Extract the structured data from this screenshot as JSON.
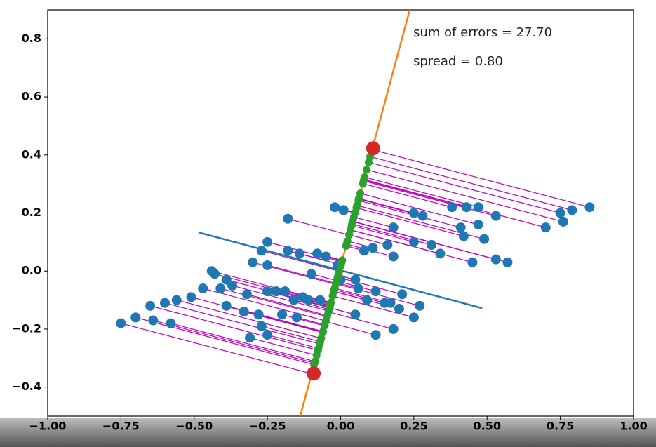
{
  "chart_data": {
    "type": "scatter",
    "annotations": [
      "sum of errors = 27.70",
      "spread = 0.80"
    ],
    "xlim": [
      -1.0,
      1.0
    ],
    "ylim": [
      -0.5,
      0.9
    ],
    "xticks": [
      {
        "value": -1.0,
        "label": "−1.00"
      },
      {
        "value": -0.75,
        "label": "−0.75"
      },
      {
        "value": -0.5,
        "label": "−0.50"
      },
      {
        "value": -0.25,
        "label": "−0.25"
      },
      {
        "value": 0,
        "label": "0.00"
      },
      {
        "value": 0.25,
        "label": "0.25"
      },
      {
        "value": 0.5,
        "label": "0.50"
      },
      {
        "value": 0.75,
        "label": "0.75"
      },
      {
        "value": 1.0,
        "label": "1.00"
      }
    ],
    "yticks": [
      {
        "value": -0.4,
        "label": "−0.4"
      },
      {
        "value": -0.2,
        "label": "−0.2"
      },
      {
        "value": 0,
        "label": "0.0"
      },
      0.2,
      0.4,
      0.6,
      0.8
    ],
    "projection_color": "#bf00bf",
    "projection_point_color": "#2ca02c",
    "series": [
      {
        "color": "#1f77b4",
        "mode": "points",
        "x": [
          0.85,
          0.79,
          0.75,
          0.76,
          0.7,
          0.47,
          0.43,
          0.38,
          0.53,
          0.47,
          0.41,
          0.42,
          0.49,
          0.25,
          0.28,
          0.18,
          0.25,
          0.31,
          0.34,
          0.45,
          0.53,
          0.57,
          0.16,
          0.11,
          0.08,
          0.18,
          -0.02,
          0.01,
          -0.18,
          -0.25,
          -0.27,
          -0.18,
          -0.14,
          -0.08,
          -0.05,
          -0.3,
          -0.25,
          -0.1,
          -0.44,
          -0.43,
          -0.39,
          -0.37,
          -0.47,
          -0.41,
          -0.32,
          -0.25,
          -0.22,
          -0.19,
          -0.16,
          -0.13,
          -0.11,
          -0.07,
          -0.51,
          -0.56,
          -0.6,
          -0.65,
          -0.39,
          -0.33,
          -0.28,
          -0.2,
          -0.15,
          -0.7,
          -0.64,
          -0.58,
          -0.75,
          -0.27,
          -0.25,
          -0.31,
          0.05,
          0.06,
          0.12,
          0.21,
          0.09,
          0.15,
          0.17,
          0.27,
          0.2,
          0.25,
          0.05,
          0.18,
          0.12,
          0.0,
          -0.01
        ],
        "y": [
          0.22,
          0.21,
          0.2,
          0.17,
          0.15,
          0.22,
          0.22,
          0.22,
          0.19,
          0.16,
          0.15,
          0.12,
          0.11,
          0.2,
          0.19,
          0.15,
          0.1,
          0.09,
          0.06,
          0.03,
          0.04,
          0.03,
          0.09,
          0.08,
          0.07,
          0.05,
          0.22,
          0.21,
          0.18,
          0.1,
          0.07,
          0.07,
          0.06,
          0.06,
          0.05,
          0.03,
          0.02,
          -0.01,
          0.0,
          -0.01,
          -0.03,
          -0.05,
          -0.06,
          -0.06,
          -0.08,
          -0.07,
          -0.07,
          -0.07,
          -0.1,
          -0.09,
          -0.1,
          -0.1,
          -0.09,
          -0.1,
          -0.11,
          -0.12,
          -0.12,
          -0.14,
          -0.15,
          -0.15,
          -0.16,
          -0.16,
          -0.17,
          -0.18,
          -0.18,
          -0.19,
          -0.22,
          -0.23,
          -0.03,
          -0.06,
          -0.07,
          -0.08,
          -0.1,
          -0.11,
          -0.11,
          -0.12,
          -0.13,
          -0.16,
          -0.15,
          -0.2,
          -0.22,
          -0.03,
          0.02
        ]
      },
      {
        "color": "#1f77b4",
        "mode": "line",
        "x": [
          -0.485,
          0.483
        ],
        "y": [
          0.133,
          -0.128
        ]
      },
      {
        "color": "#ff7f0e",
        "mode": "line",
        "projection": true,
        "x": [
          -0.138,
          0.236
        ],
        "y": [
          -0.5,
          0.9
        ]
      },
      {
        "color": "#d62728",
        "mode": "points",
        "size": 10,
        "x": [
          -0.092,
          0.111
        ],
        "y": [
          -0.353,
          0.423
        ]
      }
    ]
  }
}
